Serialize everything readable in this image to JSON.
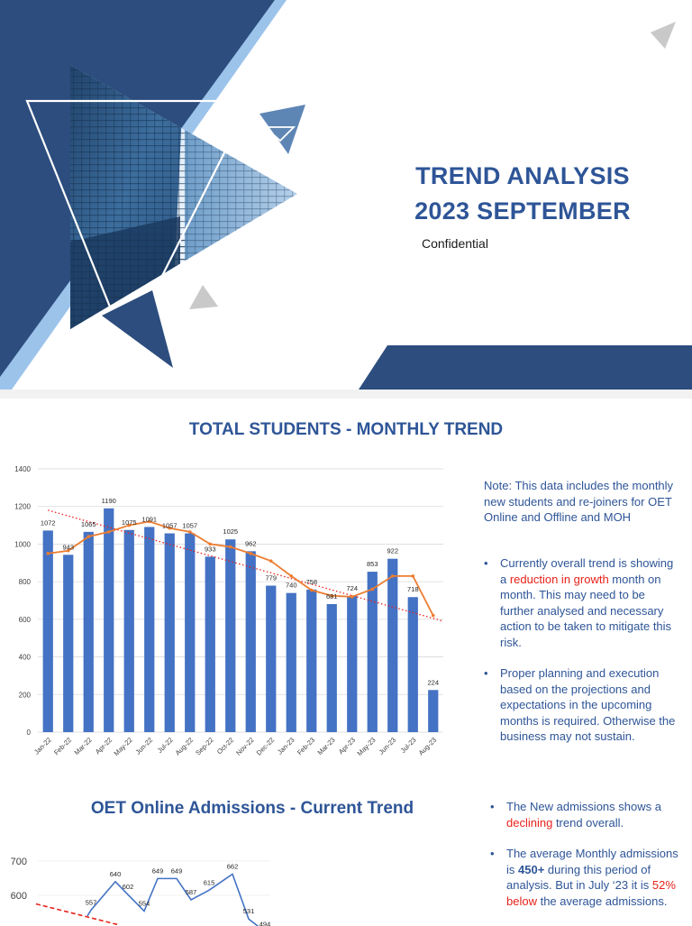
{
  "cover": {
    "title_line1": "TREND ANALYSIS",
    "title_line2": "2023 SEPTEMBER",
    "subtitle": "Confidential",
    "colors": {
      "navy": "#2c4d7e",
      "light_blue": "#9cc3ea",
      "accent_blue": "#5e86b5",
      "grey": "#c9c9c9"
    }
  },
  "total_students": {
    "title": "TOTAL STUDENTS - MONTHLY TREND",
    "note": "Note: This data includes the monthly new students and re-joiners for OET Online and Offline and MOH",
    "bullet1_a": "Currently overall trend is showing a ",
    "bullet1_red": "reduction in growth",
    "bullet1_b": " month on month. This may need to be further analysed and necessary action to be taken to mitigate this risk.",
    "bullet2": "Proper planning and execution based on the projections and expectations in the upcoming months is required. Otherwise the business may not sustain."
  },
  "oet": {
    "title": "OET Online Admissions - Current Trend",
    "bullet1_a": "The New admissions shows a ",
    "bullet1_red": "declining",
    "bullet1_b": " trend overall.",
    "bullet2_a": "The average Monthly admissions is ",
    "bullet2_bold": "450+",
    "bullet2_b": " during this period of analysis. But in July ‘23 it is ",
    "bullet2_red": "52% below",
    "bullet2_c": " the average admissions."
  },
  "chart_data": [
    {
      "type": "bar",
      "title": "TOTAL STUDENTS - MONTHLY TREND",
      "categories": [
        "Jan-22",
        "Feb-22",
        "Mar-22",
        "Apr-22",
        "May-22",
        "Jun-22",
        "Jul-22",
        "Aug-22",
        "Sep-22",
        "Oct-22",
        "Nov-22",
        "Dec-22",
        "Jan-23",
        "Feb-23",
        "Mar-23",
        "Apr-23",
        "May-23",
        "Jun-23",
        "Jul-23",
        "Aug-23"
      ],
      "values": [
        1072,
        943,
        1065,
        1190,
        1075,
        1091,
        1057,
        1057,
        933,
        1025,
        962,
        779,
        740,
        758,
        681,
        724,
        853,
        922,
        718,
        224
      ],
      "moving_average": [
        950,
        965,
        1040,
        1065,
        1100,
        1120,
        1085,
        1065,
        1000,
        985,
        950,
        910,
        830,
        755,
        725,
        720,
        760,
        830,
        830,
        620
      ],
      "trendline": {
        "style": "dotted",
        "color": "#e8221b",
        "start": 1180,
        "end": 590
      },
      "ylim": [
        0,
        1400
      ],
      "yticks": [
        0,
        200,
        400,
        600,
        800,
        1000,
        1200,
        1400
      ],
      "grid": true,
      "bar_color": "#4472c4",
      "line_color": "#ed7d31"
    },
    {
      "type": "line",
      "title": "OET Online Admissions - Current Trend",
      "yticks_visible": [
        600,
        700
      ],
      "labels": [
        557,
        640,
        602,
        554,
        649,
        649,
        587,
        615,
        662,
        531,
        494
      ],
      "trendline": {
        "style": "dashed",
        "color": "#e8221b"
      },
      "line_color": "#4472c4"
    }
  ]
}
